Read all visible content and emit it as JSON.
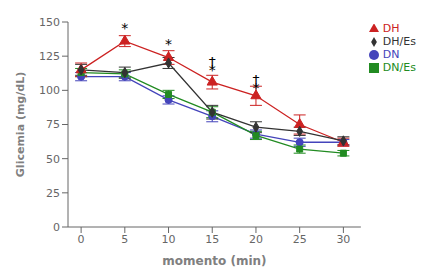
{
  "chart_data": {
    "type": "line",
    "x": [
      0,
      5,
      10,
      15,
      20,
      25,
      30
    ],
    "series": [
      {
        "name": "DN",
        "color": "#4444bb",
        "marker": "circle",
        "values": [
          110,
          110,
          93,
          81,
          68,
          62,
          62
        ],
        "errors": [
          3,
          3,
          3,
          4,
          3,
          3,
          2
        ]
      },
      {
        "name": "DN/Es",
        "color": "#228B22",
        "marker": "square",
        "values": [
          113,
          112,
          97,
          84,
          67,
          57,
          54
        ],
        "errors": [
          3,
          3,
          3,
          4,
          3,
          3,
          2
        ]
      },
      {
        "name": "DH",
        "color": "#cc2222",
        "marker": "triangle",
        "values": [
          115,
          136,
          124,
          106,
          96,
          75,
          62
        ],
        "errors": [
          5,
          4,
          5,
          5,
          7,
          7,
          3
        ]
      },
      {
        "name": "DH/Es",
        "color": "#333333",
        "marker": "diamond",
        "values": [
          115,
          113,
          120,
          84,
          73,
          70,
          63
        ],
        "errors": [
          4,
          4,
          4,
          5,
          4,
          3,
          3
        ]
      }
    ],
    "xlim": [
      -1.5,
      32
    ],
    "xticks": [
      0,
      5,
      10,
      15,
      20,
      25,
      30
    ],
    "ylim": [
      0,
      150
    ],
    "yticks": [
      0,
      25,
      50,
      75,
      100,
      125,
      150
    ],
    "xlabel": "momento (min)",
    "ylabel": "Glicemia (mg/dL)",
    "annotations": [
      {
        "x": 5,
        "y": 142,
        "text": "*"
      },
      {
        "x": 10,
        "y": 130,
        "text": "*"
      },
      {
        "x": 15,
        "y": 117,
        "text": "†"
      },
      {
        "x": 15,
        "y": 111,
        "text": "*"
      },
      {
        "x": 20,
        "y": 104,
        "text": "†"
      },
      {
        "x": 20,
        "y": 98,
        "text": "*"
      }
    ],
    "legend": "upper right",
    "grid": false
  }
}
